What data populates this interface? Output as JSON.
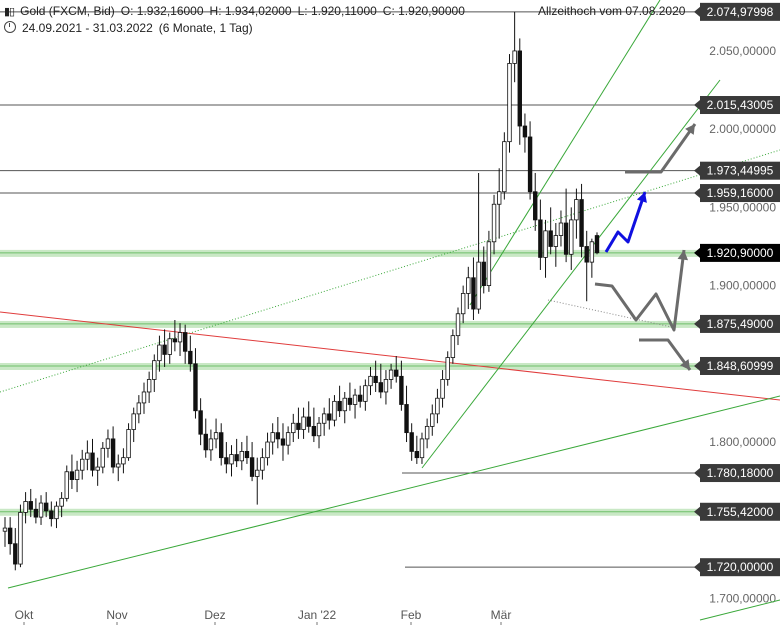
{
  "header": {
    "symbol": "Gold (FXCM, Bid)",
    "open": "O: 1.932,16000",
    "high": "H: 1.934,02000",
    "low": "L: 1.920,11000",
    "close": "C: 1.920,90000",
    "range": "24.09.2021 - 31.03.2022",
    "period": "(6 Monate, 1 Tag)",
    "ath": "Allzeithoch vom 07.08.2020"
  },
  "colors": {
    "candle": "#111111",
    "axis_label_bg": "#3a3a3a",
    "current_label_bg": "#000000",
    "zone": "#c9e8c5",
    "zone_line": "#6fbf6a",
    "trend_green": "#3aa83a",
    "trend_red": "#e03c3c",
    "projection_gray": "#6b6b6b",
    "projection_blue": "#1010e0"
  },
  "chart_data": {
    "type": "candlestick",
    "title": "Gold (FXCM, Bid)",
    "xlabel": "",
    "ylabel": "",
    "ylim": [
      1690,
      2080
    ],
    "x_ticks": [
      "Okt",
      "Nov",
      "Dez",
      "Jan '22",
      "Feb",
      "Mär"
    ],
    "y_ticks": [
      "1.700,00000",
      "1.800,00000",
      "1.900,00000",
      "1.950,00000",
      "2.000,00000",
      "2.050,00000"
    ],
    "levels": [
      {
        "value": 2074.97998,
        "label": "2.074,97998"
      },
      {
        "value": 2015.43005,
        "label": "2.015,43005"
      },
      {
        "value": 1973.44995,
        "label": "1.973,44995"
      },
      {
        "value": 1959.16,
        "label": "1.959,16000"
      },
      {
        "value": 1875.49,
        "label": "1.875,49000",
        "zone": true
      },
      {
        "value": 1848.60999,
        "label": "1.848,60999",
        "zone": true
      },
      {
        "value": 1780.18,
        "label": "1.780,18000"
      },
      {
        "value": 1755.42,
        "label": "1.755,42000",
        "zone": true
      },
      {
        "value": 1720.0,
        "label": "1.720,00000"
      }
    ],
    "current": {
      "value": 1920.9,
      "label": "1.920,90000",
      "zone": true
    },
    "candles": [
      [
        1743,
        1752,
        1733,
        1745
      ],
      [
        1745,
        1752,
        1728,
        1735
      ],
      [
        1735,
        1745,
        1718,
        1722
      ],
      [
        1722,
        1760,
        1720,
        1755
      ],
      [
        1755,
        1768,
        1748,
        1762
      ],
      [
        1762,
        1770,
        1752,
        1757
      ],
      [
        1757,
        1764,
        1748,
        1752
      ],
      [
        1752,
        1766,
        1747,
        1761
      ],
      [
        1761,
        1768,
        1752,
        1756
      ],
      [
        1756,
        1762,
        1746,
        1751
      ],
      [
        1751,
        1762,
        1745,
        1759
      ],
      [
        1759,
        1768,
        1752,
        1764
      ],
      [
        1764,
        1785,
        1762,
        1781
      ],
      [
        1781,
        1792,
        1770,
        1776
      ],
      [
        1776,
        1788,
        1768,
        1782
      ],
      [
        1782,
        1795,
        1776,
        1789
      ],
      [
        1789,
        1801,
        1782,
        1793
      ],
      [
        1793,
        1802,
        1778,
        1782
      ],
      [
        1782,
        1790,
        1772,
        1784
      ],
      [
        1784,
        1800,
        1780,
        1796
      ],
      [
        1796,
        1808,
        1790,
        1802
      ],
      [
        1802,
        1810,
        1780,
        1784
      ],
      [
        1784,
        1792,
        1775,
        1786
      ],
      [
        1786,
        1796,
        1780,
        1790
      ],
      [
        1790,
        1812,
        1788,
        1808
      ],
      [
        1808,
        1822,
        1800,
        1818
      ],
      [
        1818,
        1830,
        1812,
        1825
      ],
      [
        1825,
        1838,
        1818,
        1832
      ],
      [
        1832,
        1845,
        1825,
        1840
      ],
      [
        1840,
        1856,
        1832,
        1852
      ],
      [
        1852,
        1868,
        1845,
        1862
      ],
      [
        1862,
        1872,
        1848,
        1856
      ],
      [
        1856,
        1870,
        1850,
        1866
      ],
      [
        1866,
        1878,
        1858,
        1864
      ],
      [
        1864,
        1876,
        1855,
        1870
      ],
      [
        1870,
        1875,
        1850,
        1858
      ],
      [
        1858,
        1868,
        1845,
        1850
      ],
      [
        1850,
        1860,
        1815,
        1820
      ],
      [
        1820,
        1828,
        1798,
        1805
      ],
      [
        1805,
        1815,
        1790,
        1795
      ],
      [
        1795,
        1808,
        1788,
        1802
      ],
      [
        1802,
        1815,
        1796,
        1806
      ],
      [
        1806,
        1812,
        1785,
        1790
      ],
      [
        1790,
        1800,
        1780,
        1786
      ],
      [
        1786,
        1798,
        1778,
        1792
      ],
      [
        1792,
        1802,
        1784,
        1788
      ],
      [
        1788,
        1800,
        1782,
        1794
      ],
      [
        1794,
        1804,
        1786,
        1790
      ],
      [
        1790,
        1800,
        1775,
        1778
      ],
      [
        1778,
        1790,
        1760,
        1782
      ],
      [
        1782,
        1796,
        1776,
        1790
      ],
      [
        1790,
        1806,
        1785,
        1800
      ],
      [
        1800,
        1812,
        1792,
        1806
      ],
      [
        1806,
        1816,
        1796,
        1802
      ],
      [
        1802,
        1812,
        1788,
        1798
      ],
      [
        1798,
        1810,
        1792,
        1806
      ],
      [
        1806,
        1818,
        1800,
        1812
      ],
      [
        1812,
        1822,
        1802,
        1808
      ],
      [
        1808,
        1822,
        1802,
        1816
      ],
      [
        1816,
        1826,
        1806,
        1810
      ],
      [
        1810,
        1822,
        1800,
        1804
      ],
      [
        1804,
        1816,
        1796,
        1812
      ],
      [
        1812,
        1822,
        1804,
        1818
      ],
      [
        1818,
        1828,
        1808,
        1814
      ],
      [
        1814,
        1830,
        1810,
        1826
      ],
      [
        1826,
        1836,
        1816,
        1820
      ],
      [
        1820,
        1832,
        1812,
        1828
      ],
      [
        1828,
        1838,
        1820,
        1824
      ],
      [
        1824,
        1834,
        1815,
        1830
      ],
      [
        1830,
        1836,
        1822,
        1826
      ],
      [
        1826,
        1840,
        1820,
        1836
      ],
      [
        1836,
        1848,
        1830,
        1842
      ],
      [
        1842,
        1852,
        1832,
        1838
      ],
      [
        1838,
        1850,
        1828,
        1832
      ],
      [
        1832,
        1846,
        1824,
        1840
      ],
      [
        1840,
        1850,
        1834,
        1846
      ],
      [
        1846,
        1855,
        1838,
        1842
      ],
      [
        1842,
        1852,
        1820,
        1824
      ],
      [
        1824,
        1836,
        1800,
        1806
      ],
      [
        1806,
        1812,
        1788,
        1794
      ],
      [
        1794,
        1804,
        1786,
        1790
      ],
      [
        1790,
        1806,
        1786,
        1802
      ],
      [
        1802,
        1815,
        1796,
        1810
      ],
      [
        1810,
        1824,
        1804,
        1818
      ],
      [
        1818,
        1834,
        1812,
        1828
      ],
      [
        1828,
        1846,
        1822,
        1840
      ],
      [
        1840,
        1858,
        1836,
        1854
      ],
      [
        1854,
        1872,
        1850,
        1868
      ],
      [
        1868,
        1886,
        1862,
        1882
      ],
      [
        1882,
        1900,
        1876,
        1895
      ],
      [
        1895,
        1912,
        1885,
        1905
      ],
      [
        1905,
        1918,
        1878,
        1885
      ],
      [
        1885,
        1972,
        1882,
        1915
      ],
      [
        1915,
        1925,
        1895,
        1900
      ],
      [
        1900,
        1935,
        1896,
        1928
      ],
      [
        1928,
        1958,
        1920,
        1952
      ],
      [
        1952,
        1975,
        1930,
        1960
      ],
      [
        1960,
        1998,
        1955,
        1992
      ],
      [
        1992,
        2048,
        1985,
        2042
      ],
      [
        2042,
        2075,
        2030,
        2050
      ],
      [
        2050,
        2058,
        1990,
        2002
      ],
      [
        2002,
        2010,
        1985,
        1995
      ],
      [
        1995,
        2005,
        1955,
        1960
      ],
      [
        1960,
        1972,
        1935,
        1942
      ],
      [
        1942,
        1955,
        1910,
        1918
      ],
      [
        1918,
        1942,
        1905,
        1935
      ],
      [
        1935,
        1950,
        1920,
        1925
      ],
      [
        1925,
        1940,
        1912,
        1932
      ],
      [
        1932,
        1948,
        1925,
        1940
      ],
      [
        1940,
        1962,
        1915,
        1920
      ],
      [
        1920,
        1950,
        1910,
        1942
      ],
      [
        1942,
        1962,
        1930,
        1955
      ],
      [
        1955,
        1965,
        1918,
        1925
      ],
      [
        1925,
        1935,
        1890,
        1915
      ],
      [
        1915,
        1930,
        1905,
        1928
      ],
      [
        1932,
        1934,
        1920,
        1921
      ]
    ]
  }
}
